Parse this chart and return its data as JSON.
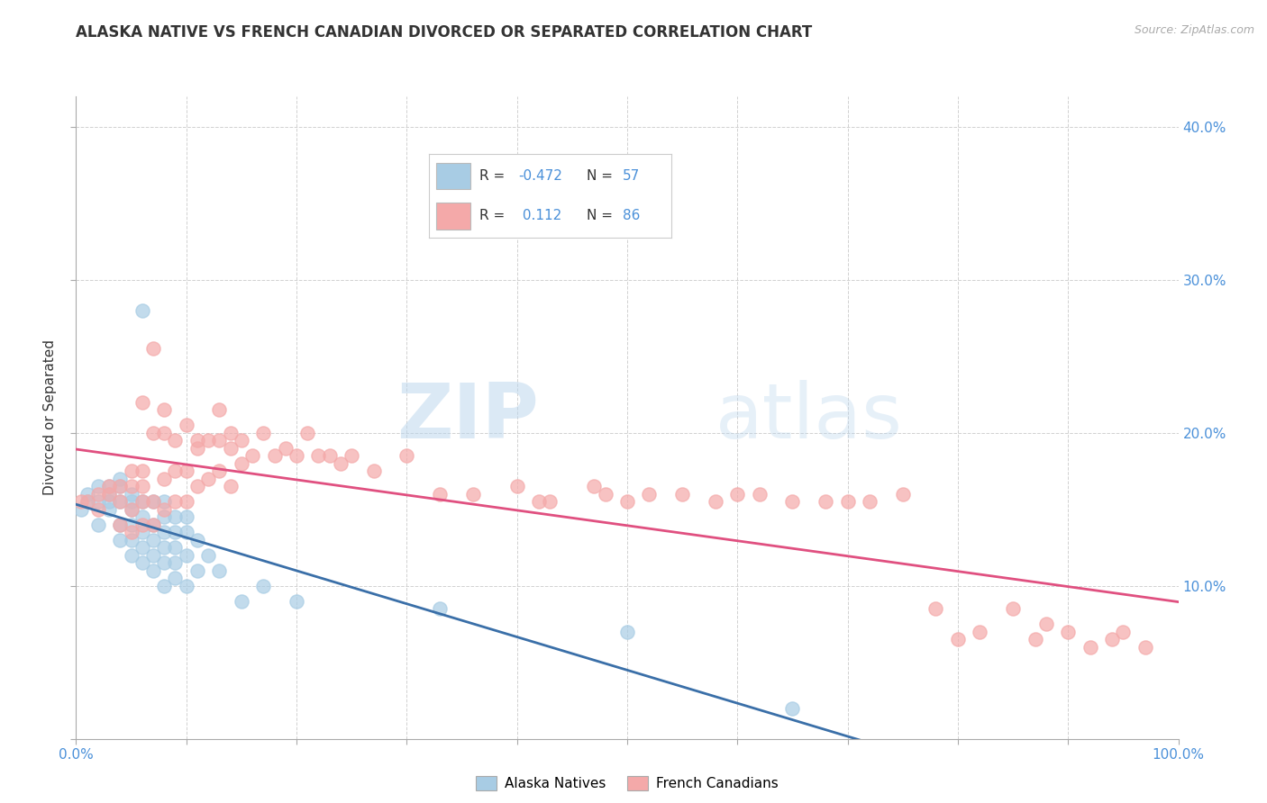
{
  "title": "ALASKA NATIVE VS FRENCH CANADIAN DIVORCED OR SEPARATED CORRELATION CHART",
  "source_text": "Source: ZipAtlas.com",
  "ylabel": "Divorced or Separated",
  "R_blue": -0.472,
  "N_blue": 57,
  "R_pink": 0.112,
  "N_pink": 86,
  "blue_color": "#a8cce4",
  "pink_color": "#f4a9a9",
  "blue_line_color": "#3a6fa8",
  "pink_line_color": "#e05080",
  "legend_label_blue": "Alaska Natives",
  "legend_label_pink": "French Canadians",
  "watermark_zip": "ZIP",
  "watermark_atlas": "atlas",
  "title_fontsize": 12,
  "tick_color": "#4a90d9",
  "blue_scatter_x": [
    0.005,
    0.01,
    0.01,
    0.02,
    0.02,
    0.02,
    0.03,
    0.03,
    0.03,
    0.03,
    0.04,
    0.04,
    0.04,
    0.04,
    0.04,
    0.05,
    0.05,
    0.05,
    0.05,
    0.05,
    0.05,
    0.06,
    0.06,
    0.06,
    0.06,
    0.06,
    0.06,
    0.07,
    0.07,
    0.07,
    0.07,
    0.07,
    0.08,
    0.08,
    0.08,
    0.08,
    0.08,
    0.08,
    0.09,
    0.09,
    0.09,
    0.09,
    0.09,
    0.1,
    0.1,
    0.1,
    0.1,
    0.11,
    0.11,
    0.12,
    0.13,
    0.15,
    0.17,
    0.2,
    0.33,
    0.5,
    0.65
  ],
  "blue_scatter_y": [
    0.15,
    0.155,
    0.16,
    0.14,
    0.155,
    0.165,
    0.15,
    0.155,
    0.16,
    0.165,
    0.13,
    0.14,
    0.155,
    0.165,
    0.17,
    0.12,
    0.13,
    0.14,
    0.15,
    0.155,
    0.16,
    0.115,
    0.125,
    0.135,
    0.145,
    0.155,
    0.28,
    0.11,
    0.12,
    0.13,
    0.14,
    0.155,
    0.1,
    0.115,
    0.125,
    0.135,
    0.145,
    0.155,
    0.105,
    0.115,
    0.125,
    0.135,
    0.145,
    0.1,
    0.12,
    0.135,
    0.145,
    0.11,
    0.13,
    0.12,
    0.11,
    0.09,
    0.1,
    0.09,
    0.085,
    0.07,
    0.02
  ],
  "pink_scatter_x": [
    0.005,
    0.01,
    0.02,
    0.02,
    0.03,
    0.03,
    0.04,
    0.04,
    0.04,
    0.05,
    0.05,
    0.05,
    0.05,
    0.06,
    0.06,
    0.06,
    0.06,
    0.06,
    0.07,
    0.07,
    0.07,
    0.07,
    0.08,
    0.08,
    0.08,
    0.08,
    0.09,
    0.09,
    0.09,
    0.1,
    0.1,
    0.1,
    0.11,
    0.11,
    0.11,
    0.12,
    0.12,
    0.13,
    0.13,
    0.13,
    0.14,
    0.14,
    0.14,
    0.15,
    0.15,
    0.16,
    0.17,
    0.18,
    0.19,
    0.2,
    0.21,
    0.22,
    0.23,
    0.24,
    0.25,
    0.27,
    0.3,
    0.33,
    0.36,
    0.4,
    0.43,
    0.47,
    0.5,
    0.55,
    0.6,
    0.65,
    0.7,
    0.75,
    0.8,
    0.85,
    0.88,
    0.92,
    0.95,
    0.42,
    0.48,
    0.52,
    0.58,
    0.62,
    0.68,
    0.72,
    0.78,
    0.82,
    0.87,
    0.9,
    0.94,
    0.97
  ],
  "pink_scatter_y": [
    0.155,
    0.155,
    0.15,
    0.16,
    0.16,
    0.165,
    0.14,
    0.155,
    0.165,
    0.135,
    0.15,
    0.165,
    0.175,
    0.14,
    0.155,
    0.165,
    0.175,
    0.22,
    0.14,
    0.155,
    0.2,
    0.255,
    0.15,
    0.17,
    0.2,
    0.215,
    0.155,
    0.175,
    0.195,
    0.155,
    0.175,
    0.205,
    0.165,
    0.19,
    0.195,
    0.17,
    0.195,
    0.175,
    0.195,
    0.215,
    0.165,
    0.19,
    0.2,
    0.18,
    0.195,
    0.185,
    0.2,
    0.185,
    0.19,
    0.185,
    0.2,
    0.185,
    0.185,
    0.18,
    0.185,
    0.175,
    0.185,
    0.16,
    0.16,
    0.165,
    0.155,
    0.165,
    0.155,
    0.16,
    0.16,
    0.155,
    0.155,
    0.16,
    0.065,
    0.085,
    0.075,
    0.06,
    0.07,
    0.155,
    0.16,
    0.16,
    0.155,
    0.16,
    0.155,
    0.155,
    0.085,
    0.07,
    0.065,
    0.07,
    0.065,
    0.06
  ]
}
